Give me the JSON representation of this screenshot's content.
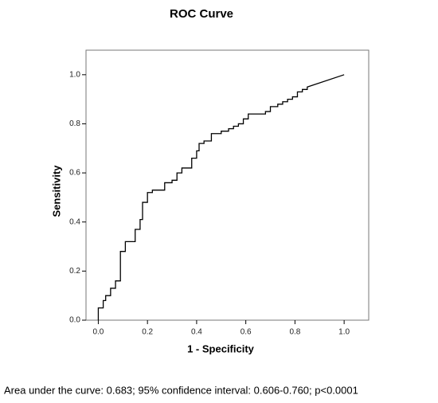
{
  "chart_data": {
    "type": "line",
    "title": "ROC Curve",
    "xlabel": "1 - Specificity",
    "ylabel": "Sensitivity",
    "caption": "Area under the curve: 0.683; 95% confidence interval: 0.606-0.760;  p<0.0001",
    "x": [
      0,
      0,
      0.02,
      0.02,
      0.03,
      0.03,
      0.05,
      0.05,
      0.07,
      0.07,
      0.09,
      0.09,
      0.11,
      0.11,
      0.15,
      0.15,
      0.17,
      0.17,
      0.18,
      0.18,
      0.2,
      0.2,
      0.22,
      0.22,
      0.27,
      0.27,
      0.3,
      0.3,
      0.32,
      0.32,
      0.34,
      0.34,
      0.38,
      0.38,
      0.4,
      0.4,
      0.41,
      0.41,
      0.43,
      0.43,
      0.46,
      0.46,
      0.5,
      0.5,
      0.53,
      0.53,
      0.55,
      0.55,
      0.57,
      0.57,
      0.59,
      0.59,
      0.61,
      0.61,
      0.68,
      0.68,
      0.7,
      0.7,
      0.73,
      0.73,
      0.75,
      0.75,
      0.77,
      0.77,
      0.79,
      0.79,
      0.81,
      0.81,
      0.83,
      0.83,
      0.85,
      0.85,
      1.0
    ],
    "series": [
      {
        "color": "#000000",
        "values": [
          0,
          0.05,
          0.05,
          0.08,
          0.08,
          0.1,
          0.1,
          0.13,
          0.13,
          0.16,
          0.16,
          0.28,
          0.28,
          0.32,
          0.32,
          0.37,
          0.37,
          0.41,
          0.41,
          0.48,
          0.48,
          0.52,
          0.52,
          0.53,
          0.53,
          0.56,
          0.56,
          0.57,
          0.57,
          0.6,
          0.6,
          0.62,
          0.62,
          0.66,
          0.66,
          0.69,
          0.69,
          0.72,
          0.72,
          0.73,
          0.73,
          0.76,
          0.76,
          0.77,
          0.77,
          0.78,
          0.78,
          0.79,
          0.79,
          0.8,
          0.8,
          0.82,
          0.82,
          0.84,
          0.84,
          0.85,
          0.85,
          0.87,
          0.87,
          0.88,
          0.88,
          0.89,
          0.89,
          0.9,
          0.9,
          0.91,
          0.91,
          0.93,
          0.93,
          0.94,
          0.94,
          0.95,
          1.0
        ]
      }
    ],
    "xlim": [
      -0.05,
      1.1
    ],
    "ylim": [
      0,
      1.1
    ],
    "xticks": [
      {
        "value": 0,
        "label": "0.0"
      },
      0.2,
      0.4,
      0.6,
      0.8,
      {
        "value": 1,
        "label": "1.0"
      }
    ],
    "yticks": [
      {
        "value": 0,
        "label": "0.0"
      },
      0.2,
      0.4,
      0.6,
      0.8,
      {
        "value": 1,
        "label": "1.0"
      }
    ]
  }
}
